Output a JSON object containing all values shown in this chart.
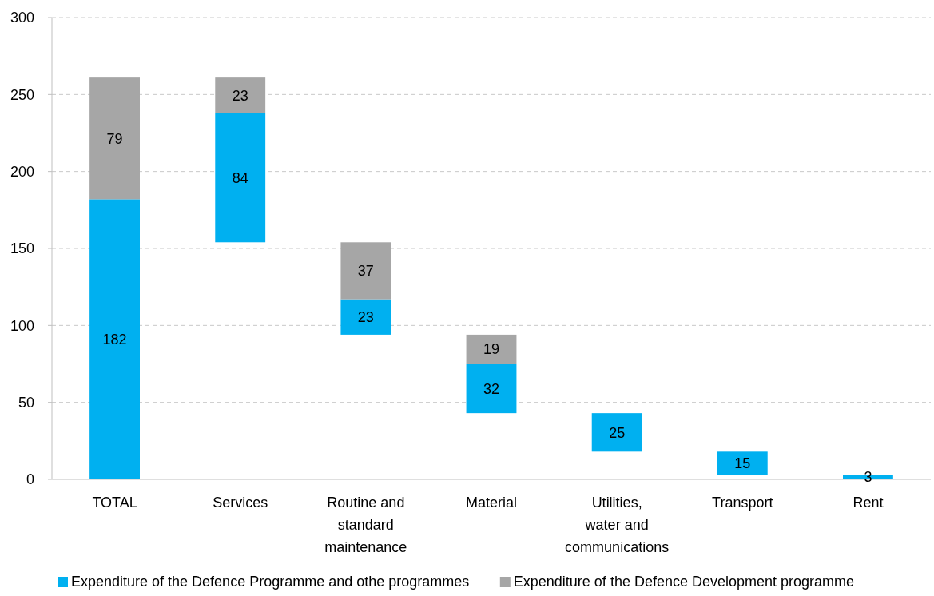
{
  "chart_data": {
    "type": "bar",
    "categories": [
      "TOTAL",
      "Services",
      "Routine and standard maintenance",
      "Material",
      "Utilities, water and communications",
      "Transport",
      "Rent"
    ],
    "series": [
      {
        "name": "Expenditure of the Defence Programme and othe programmes",
        "color": "#00b0f0",
        "base": [
          0,
          154,
          94,
          43,
          18,
          3,
          0
        ],
        "values": [
          182,
          84,
          23,
          32,
          25,
          15,
          3
        ]
      },
      {
        "name": "Expenditure of the Defence Development programme",
        "color": "#a6a6a6",
        "base": [
          182,
          238,
          117,
          75,
          null,
          null,
          null
        ],
        "values": [
          79,
          23,
          37,
          19,
          null,
          null,
          null
        ]
      }
    ],
    "ylim": [
      0,
      300
    ],
    "yticks": [
      0,
      50,
      100,
      150,
      200,
      250,
      300
    ],
    "grid": "y",
    "legend": "bottom",
    "data_labels": true
  }
}
